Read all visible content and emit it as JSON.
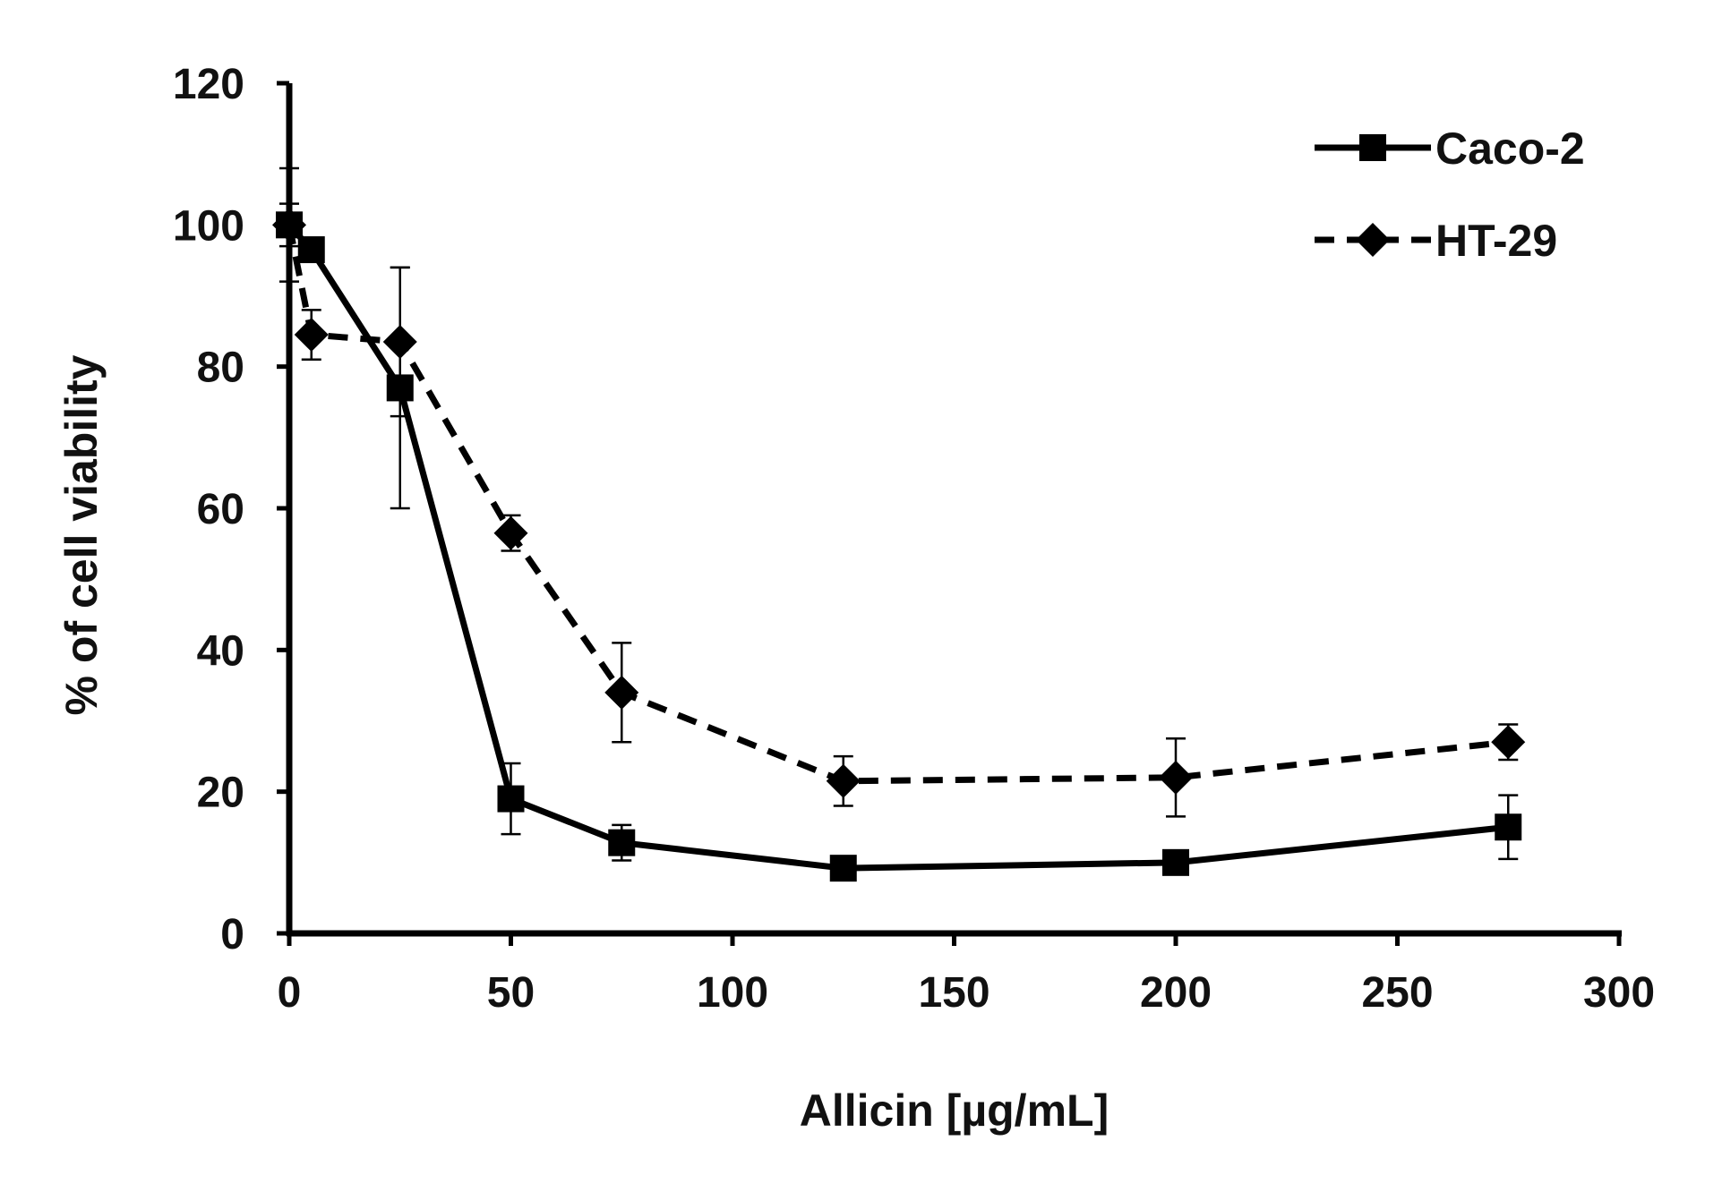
{
  "chart_data": {
    "type": "line",
    "xlabel": "Allicin [µg/mL]",
    "ylabel": "% of cell viability",
    "xlim": [
      0,
      300
    ],
    "ylim": [
      0,
      120
    ],
    "xticks": [
      0,
      50,
      100,
      150,
      200,
      250,
      300
    ],
    "yticks": [
      0,
      20,
      40,
      60,
      80,
      100,
      120
    ],
    "grid": false,
    "legend_position": "top-right",
    "series": [
      {
        "name": "Caco-2",
        "marker": "square",
        "line_style": "solid",
        "color": "#000000",
        "x": [
          0,
          5,
          25,
          50,
          75,
          125,
          200,
          275
        ],
        "y": [
          100,
          96.5,
          77,
          19,
          12.8,
          9.2,
          10,
          15
        ],
        "error": [
          3,
          1.5,
          17,
          5,
          2.5,
          0.8,
          1.5,
          4.5
        ]
      },
      {
        "name": "HT-29",
        "marker": "diamond",
        "line_style": "dashed",
        "color": "#000000",
        "x": [
          0,
          5,
          25,
          50,
          75,
          125,
          200,
          275
        ],
        "y": [
          100,
          84.5,
          83.5,
          56.5,
          34,
          21.5,
          22,
          27
        ],
        "error": [
          8,
          3.5,
          10.5,
          2.5,
          7,
          3.5,
          5.5,
          2.5
        ]
      }
    ]
  }
}
